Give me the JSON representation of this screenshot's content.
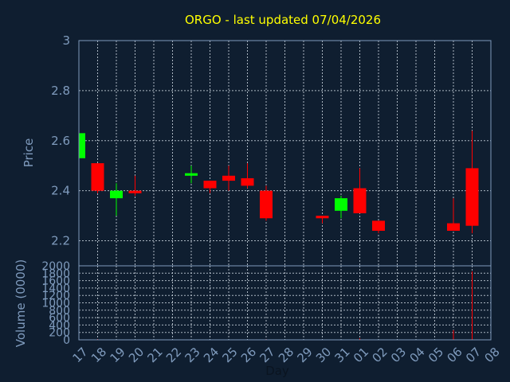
{
  "chart_data": {
    "type": "candlestick",
    "title": "ORGO - last updated 07/04/2026",
    "ylabel": "Price",
    "xlabel": "Day",
    "ylim": [
      2.1,
      3.0
    ],
    "y_ticks": [
      "2.2",
      "2.4",
      "2.6",
      "2.8",
      "3"
    ],
    "x_ticks": [
      "17",
      "18",
      "19",
      "20",
      "21",
      "22",
      "23",
      "24",
      "25",
      "26",
      "27",
      "28",
      "29",
      "30",
      "31",
      "01",
      "02",
      "03",
      "04",
      "05",
      "06",
      "07",
      "08"
    ],
    "grid": true,
    "candles": [
      {
        "day": "17",
        "open": 2.53,
        "high": 2.64,
        "low": 2.53,
        "close": 2.63
      },
      {
        "day": "18",
        "open": 2.51,
        "high": 2.51,
        "low": 2.39,
        "close": 2.4
      },
      {
        "day": "19",
        "open": 2.37,
        "high": 2.43,
        "low": 2.3,
        "close": 2.4
      },
      {
        "day": "20",
        "open": 2.4,
        "high": 2.46,
        "low": 2.38,
        "close": 2.39
      },
      {
        "day": "23",
        "open": 2.46,
        "high": 2.5,
        "low": 2.43,
        "close": 2.47
      },
      {
        "day": "24",
        "open": 2.44,
        "high": 2.44,
        "low": 2.39,
        "close": 2.41
      },
      {
        "day": "25",
        "open": 2.46,
        "high": 2.5,
        "low": 2.4,
        "close": 2.44
      },
      {
        "day": "26",
        "open": 2.45,
        "high": 2.51,
        "low": 2.41,
        "close": 2.42
      },
      {
        "day": "27",
        "open": 2.4,
        "high": 2.42,
        "low": 2.28,
        "close": 2.29
      },
      {
        "day": "30",
        "open": 2.3,
        "high": 2.3,
        "low": 2.27,
        "close": 2.29
      },
      {
        "day": "31",
        "open": 2.32,
        "high": 2.38,
        "low": 2.29,
        "close": 2.37
      },
      {
        "day": "01",
        "open": 2.41,
        "high": 2.49,
        "low": 2.31,
        "close": 2.31
      },
      {
        "day": "02",
        "open": 2.28,
        "high": 2.28,
        "low": 2.23,
        "close": 2.24
      },
      {
        "day": "06",
        "open": 2.27,
        "high": 2.37,
        "low": 2.24,
        "close": 2.24
      },
      {
        "day": "07",
        "open": 2.49,
        "high": 2.64,
        "low": 2.23,
        "close": 2.26
      }
    ],
    "up_color": "#00ff00",
    "down_color": "#ff0000",
    "volume": {
      "ylabel": "Volume (0000)",
      "ylim": [
        0,
        2000
      ],
      "y_ticks": [
        "0",
        "200",
        "400",
        "600",
        "800",
        "1000",
        "1200",
        "1400",
        "1600",
        "1800",
        "2000"
      ],
      "bars": [
        {
          "day": "17",
          "value": 5
        },
        {
          "day": "18",
          "value": 20
        },
        {
          "day": "19",
          "value": 8
        },
        {
          "day": "20",
          "value": 10
        },
        {
          "day": "23",
          "value": 4
        },
        {
          "day": "24",
          "value": 6
        },
        {
          "day": "25",
          "value": 5
        },
        {
          "day": "26",
          "value": 5
        },
        {
          "day": "27",
          "value": 15
        },
        {
          "day": "30",
          "value": 4
        },
        {
          "day": "31",
          "value": 6
        },
        {
          "day": "01",
          "value": 40
        },
        {
          "day": "02",
          "value": 10
        },
        {
          "day": "06",
          "value": 260
        },
        {
          "day": "07",
          "value": 1850
        }
      ]
    }
  }
}
